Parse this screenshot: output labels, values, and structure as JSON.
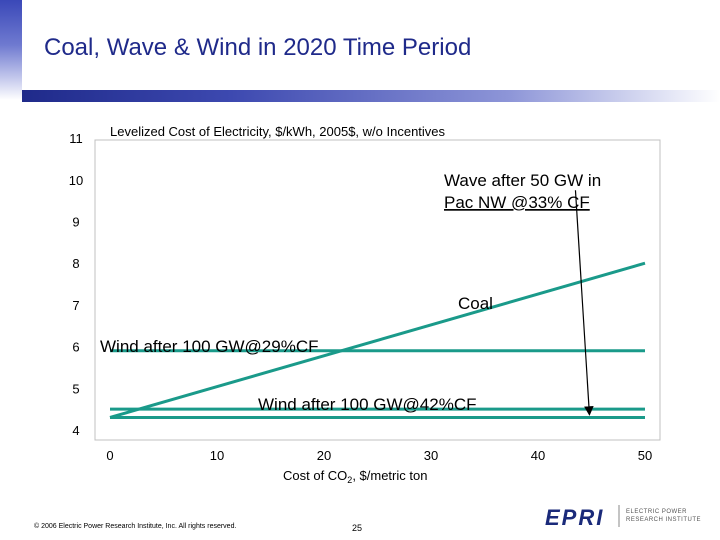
{
  "slide": {
    "title": "Coal, Wave & Wind in 2020 Time Period",
    "copyright": "© 2006 Electric Power Research Institute, Inc. All rights reserved.",
    "page_number": "25",
    "logo": {
      "mark": "EPRI",
      "line1": "ELECTRIC POWER",
      "line2": "RESEARCH INSTITUTE"
    }
  },
  "chart_data": {
    "type": "line",
    "title": "Levelized Cost of Electricity, $/kWh, 2005$, w/o Incentives",
    "xlabel_main": "Cost of CO",
    "xlabel_sub": "2",
    "xlabel_rest": ", $/metric ton",
    "xlim": [
      0,
      50
    ],
    "ylim": [
      4,
      11
    ],
    "x_ticks": [
      "0",
      "10",
      "20",
      "30",
      "40",
      "50"
    ],
    "y_ticks": [
      "11",
      "10",
      "9",
      "8",
      "7",
      "6",
      "5",
      "4"
    ],
    "grid": false,
    "colors": {
      "wind": "#1a9a8a",
      "coal": "#1a9a8a",
      "annotation": "#000000",
      "plot_border": "#c0c0c0"
    },
    "series": [
      {
        "name": "Coal",
        "x": [
          0,
          50
        ],
        "y": [
          4.3,
          8.0
        ]
      },
      {
        "name": "Wind after 100 GW@29%CF",
        "x": [
          0,
          50
        ],
        "y": [
          5.9,
          5.9
        ]
      },
      {
        "name": "Wind after 100 GW@42%CF",
        "x": [
          0,
          50
        ],
        "y": [
          4.5,
          4.5
        ]
      },
      {
        "name": "Wind after 100 GW@42%CF (lower)",
        "x": [
          0,
          50
        ],
        "y": [
          4.3,
          4.3
        ]
      }
    ],
    "labels": {
      "coal": "Coal",
      "wind29": "Wind after 100 GW@29%CF",
      "wind42": "Wind after 100 GW@42%CF",
      "wave_line1": "Wave after 50 GW in",
      "wave_line2": "Pac NW @33% CF"
    },
    "annotation_arrow": {
      "from": [
        43.5,
        9.75
      ],
      "to": [
        44.8,
        4.3
      ]
    }
  }
}
